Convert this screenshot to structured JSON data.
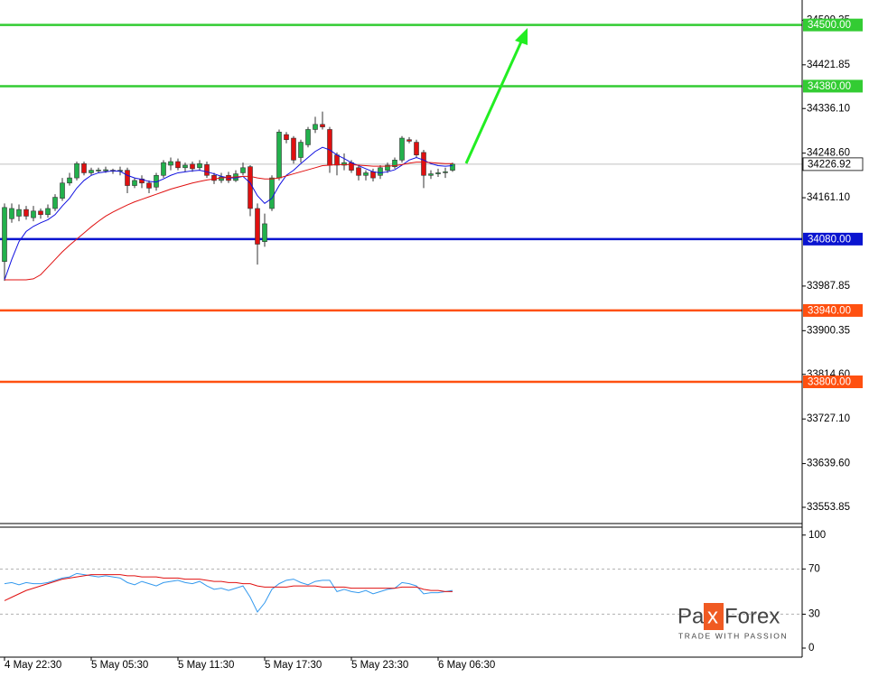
{
  "chart_data": [
    {
      "type": "candlestick",
      "categories": [
        "4 May 22:30",
        null,
        null,
        null,
        null,
        null,
        null,
        null,
        null,
        null,
        null,
        null,
        "5 May 05:30",
        null,
        null,
        null,
        null,
        null,
        null,
        null,
        null,
        null,
        null,
        null,
        "5 May 11:30",
        null,
        null,
        null,
        null,
        null,
        null,
        null,
        null,
        null,
        null,
        null,
        "5 May 17:30",
        null,
        null,
        null,
        null,
        null,
        null,
        null,
        null,
        null,
        null,
        null,
        "5 May 23:30",
        null,
        null,
        null,
        null,
        null,
        null,
        null,
        null,
        null,
        null,
        null,
        "6 May 06:30",
        null,
        null
      ],
      "open": [
        34036,
        34120,
        34125,
        34138,
        34122,
        34135,
        34128,
        34140,
        34160,
        34190,
        34200,
        34228,
        34210,
        34215,
        34214,
        34215,
        34213,
        34215,
        34185,
        34198,
        34190,
        34182,
        34205,
        34225,
        34232,
        34220,
        34227,
        34220,
        34226,
        34205,
        34195,
        34205,
        34195,
        34210,
        34222,
        34140,
        34075,
        34140,
        34200,
        34285,
        34278,
        34240,
        34265,
        34295,
        34305,
        34295,
        34245,
        34225,
        34230,
        34220,
        34205,
        34212,
        34205,
        34215,
        34222,
        34235,
        34275,
        34270,
        34250,
        34205,
        34208,
        34212,
        34215
      ],
      "high": [
        34150,
        34150,
        34148,
        34145,
        34145,
        34140,
        34148,
        34168,
        34200,
        34210,
        34232,
        34232,
        34220,
        34220,
        34222,
        34218,
        34222,
        34220,
        34200,
        34205,
        34195,
        34210,
        34235,
        34240,
        34238,
        34230,
        34232,
        34235,
        34232,
        34210,
        34210,
        34212,
        34215,
        34230,
        34225,
        34150,
        34130,
        34205,
        34295,
        34290,
        34282,
        34275,
        34300,
        34320,
        34330,
        34300,
        34250,
        34248,
        34235,
        34225,
        34215,
        34218,
        34225,
        34230,
        34240,
        34282,
        34280,
        34275,
        34255,
        34215,
        34218,
        34220,
        34230
      ],
      "low": [
        33998,
        34112,
        34115,
        34118,
        34115,
        34120,
        34122,
        34135,
        34155,
        34185,
        34195,
        34205,
        34205,
        34210,
        34210,
        34208,
        34205,
        34170,
        34180,
        34180,
        34170,
        34175,
        34200,
        34215,
        34215,
        34212,
        34212,
        34215,
        34200,
        34188,
        34190,
        34190,
        34192,
        34205,
        34125,
        34030,
        34065,
        34135,
        34195,
        34268,
        34228,
        34230,
        34260,
        34288,
        34295,
        34210,
        34205,
        34215,
        34210,
        34195,
        34195,
        34193,
        34198,
        34210,
        34218,
        34230,
        34268,
        34240,
        34180,
        34198,
        34202,
        34200,
        34212
      ],
      "close": [
        34142,
        34140,
        34138,
        34125,
        34135,
        34128,
        34140,
        34162,
        34190,
        34200,
        34228,
        34210,
        34215,
        34215.5,
        34216,
        34213,
        34215,
        34185,
        34195,
        34190,
        34180,
        34205,
        34230,
        34232,
        34220,
        34225,
        34218,
        34228,
        34205,
        34195,
        34202,
        34195,
        34208,
        34220,
        34140,
        34070,
        34110,
        34200,
        34290,
        34275,
        34235,
        34270,
        34295,
        34305,
        34300,
        34225,
        34225,
        34230,
        34215,
        34205,
        34210,
        34200,
        34220,
        34225,
        34235,
        34278,
        34272,
        34245,
        34205,
        34208,
        34210,
        34212,
        34227
      ],
      "up_color": "#22b14c",
      "down_color": "#e01010",
      "series": [
        {
          "color": "#1010e0",
          "values": [
            34000,
            34040,
            34075,
            34095,
            34105,
            34112,
            34118,
            34128,
            34145,
            34160,
            34180,
            34195,
            34205,
            34210,
            34212,
            34214,
            34213,
            34205,
            34200,
            34197,
            34193,
            34192,
            34198,
            34205,
            34210,
            34212,
            34214,
            34215,
            34212,
            34208,
            34203,
            34200,
            34200,
            34203,
            34190,
            34165,
            34150,
            34160,
            34185,
            34205,
            34215,
            34228,
            34240,
            34252,
            34260,
            34255,
            34245,
            34238,
            34230,
            34224,
            34218,
            34212,
            34210,
            34212,
            34216,
            34225,
            34235,
            34240,
            34235,
            34228,
            34224,
            34223,
            34224
          ]
        },
        {
          "color": "#e01010",
          "values": [
            34000,
            34000,
            34000,
            34000,
            34002,
            34010,
            34025,
            34040,
            34055,
            34068,
            34080,
            34092,
            34104,
            34115,
            34125,
            34133,
            34140,
            34147,
            34153,
            34158,
            34163,
            34168,
            34173,
            34178,
            34182,
            34186,
            34190,
            34193,
            34196,
            34198,
            34200,
            34201,
            34202,
            34203,
            34203,
            34200,
            34198,
            34198,
            34200,
            34204,
            34208,
            34212,
            34216,
            34220,
            34224,
            34225,
            34226,
            34226,
            34226,
            34225,
            34224,
            34223,
            34223,
            34223,
            34224,
            34226,
            34229,
            34231,
            34231,
            34230,
            34229,
            34228,
            34228
          ]
        }
      ],
      "levels": {
        "values": [
          34500,
          34380,
          34080,
          33940,
          33800
        ],
        "value_labels": [
          "34500.00",
          "34380.00",
          "34080.00",
          "33940.00",
          "33800.00"
        ],
        "colors": [
          "#33cc33",
          "#33cc33",
          "#0a14d0",
          "#ff5010",
          "#ff5010"
        ]
      },
      "last_price": 34226.92,
      "ylim": [
        33522,
        34549
      ],
      "yticks": [
        34509.35,
        34421.85,
        {
          "value": 34336.1,
          "label": "34336.10"
        },
        {
          "value": 34248.6,
          "label": "34248.60"
        },
        {
          "value": 34161.1,
          "label": "34161.10"
        },
        33987.85,
        33900.35,
        {
          "value": 33814.6,
          "label": "33814.60"
        },
        {
          "value": 33727.1,
          "label": "33727.10"
        },
        {
          "value": 33639.6,
          "label": "33639.60"
        },
        33553.85
      ]
    },
    {
      "type": "line",
      "series": [
        {
          "color": "#3399ee",
          "values": [
            57,
            58,
            56,
            58,
            57,
            57,
            58,
            60,
            62,
            63,
            66,
            65,
            64,
            63,
            64,
            63,
            62,
            58,
            56,
            59,
            57,
            55,
            58,
            59,
            60,
            58,
            57,
            59,
            55,
            52,
            53,
            51,
            53,
            55,
            45,
            32,
            40,
            52,
            57,
            60,
            61,
            58,
            56,
            59,
            60,
            60,
            50,
            52,
            50,
            49,
            51,
            48,
            50,
            52,
            53,
            58,
            57,
            55,
            48,
            49,
            49,
            50,
            51
          ]
        },
        {
          "color": "#e01010",
          "values": [
            42,
            45,
            48,
            51,
            53,
            55,
            57,
            59,
            61,
            62,
            63,
            64,
            65,
            65,
            65,
            65,
            65,
            64,
            64,
            63,
            63,
            63,
            62,
            62,
            62,
            61,
            61,
            61,
            60,
            59,
            59,
            58,
            58,
            57,
            57,
            55,
            54,
            54,
            54,
            54,
            55,
            55,
            55,
            55,
            54,
            54,
            54,
            54,
            53,
            53,
            53,
            53,
            53,
            53,
            53,
            54,
            54,
            54,
            52,
            51,
            51,
            50,
            50
          ]
        }
      ],
      "ylim": [
        -8,
        107
      ],
      "yticks": [
        100,
        70,
        30,
        0
      ],
      "grid_at": [
        70,
        30
      ]
    }
  ],
  "logo": {
    "parts": [
      "Pa",
      "x",
      "Forex"
    ],
    "tagline": "TRADE WITH PASSION"
  }
}
